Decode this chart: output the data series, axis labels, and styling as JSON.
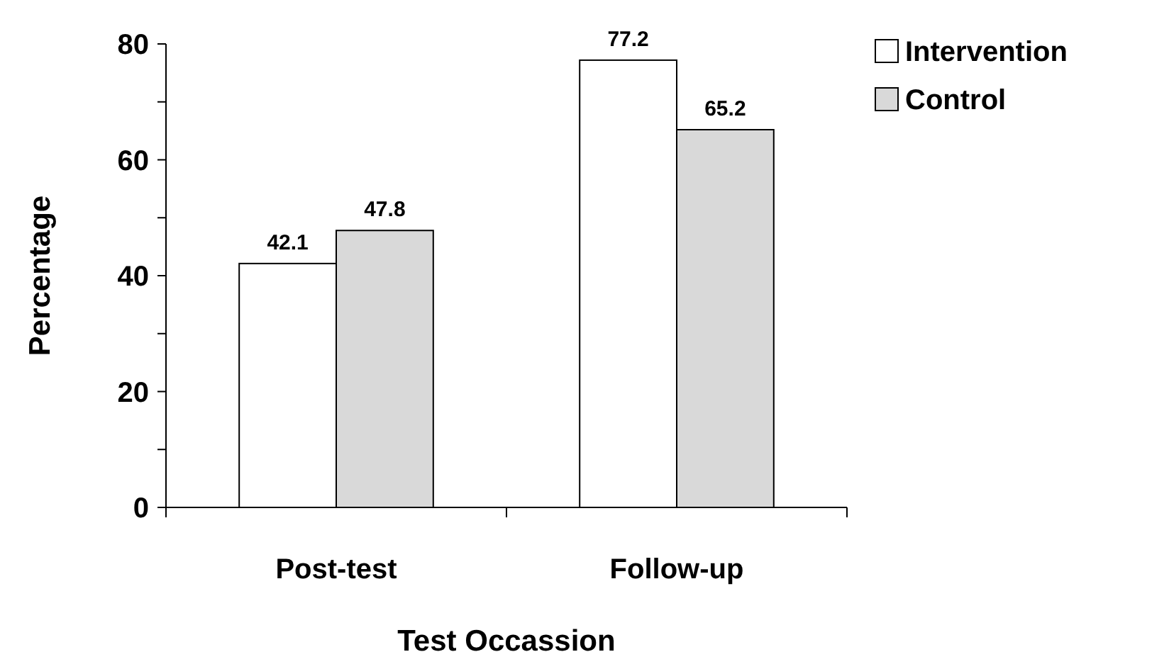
{
  "chart_data": {
    "type": "bar",
    "xlabel": "Test Occassion",
    "ylabel": "Percentage",
    "categories": [
      "Post-test",
      "Follow-up"
    ],
    "series": [
      {
        "name": "Intervention",
        "color": "#ffffff",
        "values": [
          42.1,
          77.2
        ]
      },
      {
        "name": "Control",
        "color": "#d9d9d9",
        "values": [
          47.8,
          65.2
        ]
      }
    ],
    "ylim": [
      0,
      80
    ],
    "yticks": [
      0,
      {
        "value": 10,
        "label": null
      },
      20,
      {
        "value": 30,
        "label": null
      },
      40,
      {
        "value": 50,
        "label": null
      },
      60,
      {
        "value": 70,
        "label": null
      },
      80
    ],
    "data_labels": true,
    "legend": "top right",
    "grid": false
  }
}
